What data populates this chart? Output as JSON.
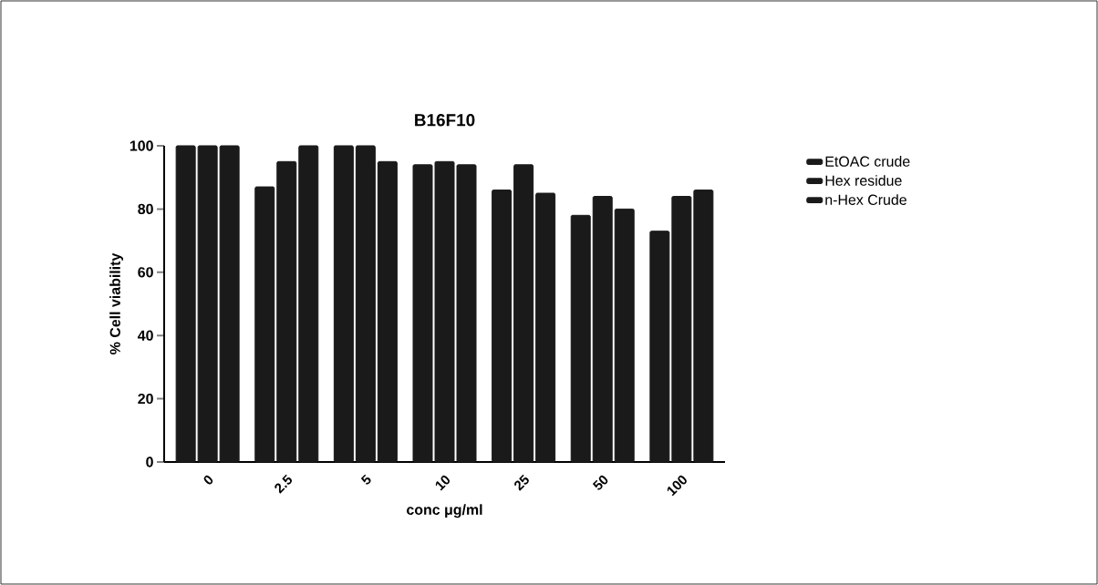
{
  "chart_data": {
    "type": "bar",
    "title": "B16F10",
    "xlabel": "conc μg/ml",
    "ylabel": "% Cell viability",
    "categories": [
      "0",
      "2.5",
      "5",
      "10",
      "25",
      "50",
      "100"
    ],
    "series": [
      {
        "name": "EtOAC crude",
        "color": "#1a1a1a",
        "values": [
          100,
          87,
          100,
          94,
          86,
          78,
          73
        ]
      },
      {
        "name": "Hex residue",
        "color": "#1a1a1a",
        "values": [
          100,
          95,
          100,
          95,
          94,
          84,
          84
        ]
      },
      {
        "name": "n-Hex Crude",
        "color": "#1a1a1a",
        "values": [
          100,
          100,
          95,
          94,
          85,
          80,
          86
        ]
      }
    ],
    "ylim": [
      0,
      100
    ],
    "yticks": [
      0,
      20,
      40,
      60,
      80,
      100
    ],
    "legend": "right"
  }
}
